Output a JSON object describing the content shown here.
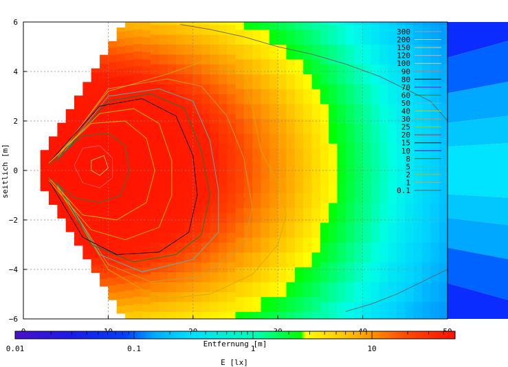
{
  "chart_data": {
    "type": "heatmap",
    "title": "",
    "xlabel": "Entfernung [m]",
    "ylabel": "seitlich [m]",
    "xlim": [
      0,
      50
    ],
    "ylim": [
      -6,
      6
    ],
    "xticks": [
      "0",
      "10",
      "20",
      "30",
      "40",
      "50"
    ],
    "yticks": [
      "6",
      "4",
      "2",
      "0",
      "−2",
      "−4",
      "−6"
    ],
    "grid": true,
    "colorbar": {
      "label": "E [lx]",
      "scale": "log",
      "range": [
        0.01,
        50
      ],
      "ticks": [
        "0.01",
        "0.1",
        "1",
        "10"
      ],
      "colors": [
        "#4b12c8",
        "#0000ff",
        "#00ccff",
        "#00ffff",
        "#00ff00",
        "#ffff00",
        "#ffa500",
        "#ff0000"
      ]
    },
    "legend": {
      "position": "top-right",
      "title": "",
      "entries": [
        {
          "label": "300",
          "color": "#a0a0a0"
        },
        {
          "label": "200",
          "color": "#a0e0a0"
        },
        {
          "label": "150",
          "color": "#f0c060"
        },
        {
          "label": "120",
          "color": "#f0a0a0"
        },
        {
          "label": "100",
          "color": "#e0d080"
        },
        {
          "label": "90",
          "color": "#ff6060"
        },
        {
          "label": "80",
          "color": "#000000"
        },
        {
          "label": "70",
          "color": "#a000c0"
        },
        {
          "label": "60",
          "color": "#208040"
        },
        {
          "label": "50",
          "color": "#60c0c0"
        },
        {
          "label": "40",
          "color": "#e0c000"
        },
        {
          "label": "30",
          "color": "#c0a040"
        },
        {
          "label": "25",
          "color": "#c0c000"
        },
        {
          "label": "20",
          "color": "#e02020"
        },
        {
          "label": "15",
          "color": "#000000"
        },
        {
          "label": "10",
          "color": "#8000a0"
        },
        {
          "label": "8",
          "color": "#008040"
        },
        {
          "label": "5",
          "color": "#40c0c0"
        },
        {
          "label": "2",
          "color": "#d0b000"
        },
        {
          "label": "1",
          "color": "#d0a050"
        },
        {
          "label": "0.1",
          "color": "#606060"
        }
      ]
    },
    "field": {
      "source_x": 2.0,
      "source_y": 0.0,
      "core_center": [
        8,
        0.2
      ],
      "contours": [
        {
          "level": 0.1,
          "color": "#606060",
          "peak": [
            48,
            -4.5
          ],
          "polyline": [
            [
              38,
              -5.7
            ],
            [
              41,
              -5.4
            ],
            [
              44,
              -5.0
            ],
            [
              47,
              -4.5
            ],
            [
              50,
              -4.0
            ]
          ]
        },
        {
          "level": 0.1,
          "color": "#606060",
          "peak": [
            48,
            5.5
          ],
          "polyline": [
            [
              18.5,
              5.9
            ],
            [
              22,
              5.7
            ],
            [
              26,
              5.4
            ],
            [
              30,
              5.0
            ],
            [
              34,
              4.7
            ],
            [
              38,
              4.3
            ],
            [
              42,
              3.8
            ],
            [
              45,
              3.3
            ],
            [
              48,
              2.8
            ],
            [
              50,
              2.0
            ]
          ]
        },
        {
          "level": 1,
          "color": "#d0b000",
          "polyline": [
            [
              4,
              0.6
            ],
            [
              10,
              3.2
            ],
            [
              17,
              3.9
            ],
            [
              22,
              4.5
            ],
            [
              26,
              3.7
            ],
            [
              27,
              2.5
            ],
            [
              28,
              0.8
            ],
            [
              30,
              -0.5
            ],
            [
              31,
              -1.8
            ],
            [
              30,
              -3.0
            ],
            [
              27,
              -4.2
            ],
            [
              22,
              -5.0
            ],
            [
              16,
              -5.2
            ],
            [
              10,
              -4.0
            ],
            [
              4,
              -0.7
            ]
          ]
        },
        {
          "level": 2,
          "color": "#c0a040",
          "polyline": [
            [
              4,
              0.5
            ],
            [
              10,
              3.3
            ],
            [
              17,
              3.7
            ],
            [
              21,
              3.4
            ],
            [
              24,
              2.2
            ],
            [
              26,
              0.5
            ],
            [
              27,
              -1.5
            ],
            [
              26,
              -3.0
            ],
            [
              21,
              -4.3
            ],
            [
              15,
              -4.5
            ],
            [
              10,
              -3.8
            ],
            [
              4,
              -0.6
            ]
          ]
        },
        {
          "level": 5,
          "color": "#40c0c0",
          "polyline": [
            [
              4,
              0.4
            ],
            [
              10,
              3.0
            ],
            [
              16,
              3.3
            ],
            [
              20,
              2.8
            ],
            [
              22,
              1.2
            ],
            [
              23,
              -0.8
            ],
            [
              23,
              -2.5
            ],
            [
              20,
              -3.6
            ],
            [
              14,
              -4.1
            ],
            [
              9,
              -3.4
            ],
            [
              4,
              -0.5
            ]
          ]
        },
        {
          "level": 8,
          "color": "#008040",
          "polyline": [
            [
              4,
              0.4
            ],
            [
              10,
              2.8
            ],
            [
              15,
              3.1
            ],
            [
              19,
              2.5
            ],
            [
              21,
              0.8
            ],
            [
              22,
              -1.0
            ],
            [
              21,
              -2.6
            ],
            [
              18,
              -3.4
            ],
            [
              13,
              -3.7
            ],
            [
              8,
              -3.0
            ],
            [
              4,
              -0.5
            ]
          ]
        },
        {
          "level": 15,
          "color": "#000000",
          "polyline": [
            [
              3,
              0.3
            ],
            [
              9,
              2.6
            ],
            [
              14,
              2.9
            ],
            [
              18,
              2.2
            ],
            [
              20,
              0.6
            ],
            [
              20.5,
              -1.0
            ],
            [
              19.5,
              -2.5
            ],
            [
              16,
              -3.3
            ],
            [
              11,
              -3.4
            ],
            [
              7,
              -2.7
            ],
            [
              3,
              -0.4
            ]
          ]
        },
        {
          "level": 25,
          "color": "#c0c000",
          "polyline": [
            [
              3,
              0.3
            ],
            [
              9,
              2.3
            ],
            [
              13,
              2.5
            ],
            [
              16,
              1.9
            ],
            [
              17.5,
              0.4
            ],
            [
              17.5,
              -1.0
            ],
            [
              16,
              -2.3
            ],
            [
              12,
              -2.8
            ],
            [
              8,
              -2.4
            ],
            [
              3,
              -0.4
            ]
          ]
        },
        {
          "level": 40,
          "color": "#e0c000",
          "polyline": [
            [
              3,
              0.3
            ],
            [
              8,
              1.9
            ],
            [
              12,
              2.0
            ],
            [
              14.5,
              1.3
            ],
            [
              15.5,
              0.0
            ],
            [
              14.5,
              -1.3
            ],
            [
              11,
              -2.0
            ],
            [
              7,
              -1.8
            ],
            [
              3,
              -0.3
            ]
          ]
        },
        {
          "level": 60,
          "color": "#208040",
          "polyline": [
            [
              3,
              0.2
            ],
            [
              7,
              1.4
            ],
            [
              10,
              1.5
            ],
            [
              12,
              1.0
            ],
            [
              12.5,
              0.0
            ],
            [
              11.5,
              -1.0
            ],
            [
              9,
              -1.3
            ],
            [
              6,
              -1.1
            ],
            [
              3,
              -0.3
            ]
          ]
        },
        {
          "level": 90,
          "color": "#ff6060",
          "polyline": [
            [
              7,
              0.9
            ],
            [
              9,
              1.0
            ],
            [
              10.5,
              0.5
            ],
            [
              10.5,
              -0.3
            ],
            [
              9,
              -0.7
            ],
            [
              7,
              -0.5
            ],
            [
              6,
              0.2
            ],
            [
              7,
              0.9
            ]
          ]
        },
        {
          "level": 150,
          "color": "#f0c060",
          "polyline": [
            [
              8,
              0.4
            ],
            [
              9.5,
              0.6
            ],
            [
              10,
              0.1
            ],
            [
              9,
              -0.2
            ],
            [
              8,
              0.0
            ],
            [
              8,
              0.4
            ]
          ]
        }
      ]
    }
  }
}
